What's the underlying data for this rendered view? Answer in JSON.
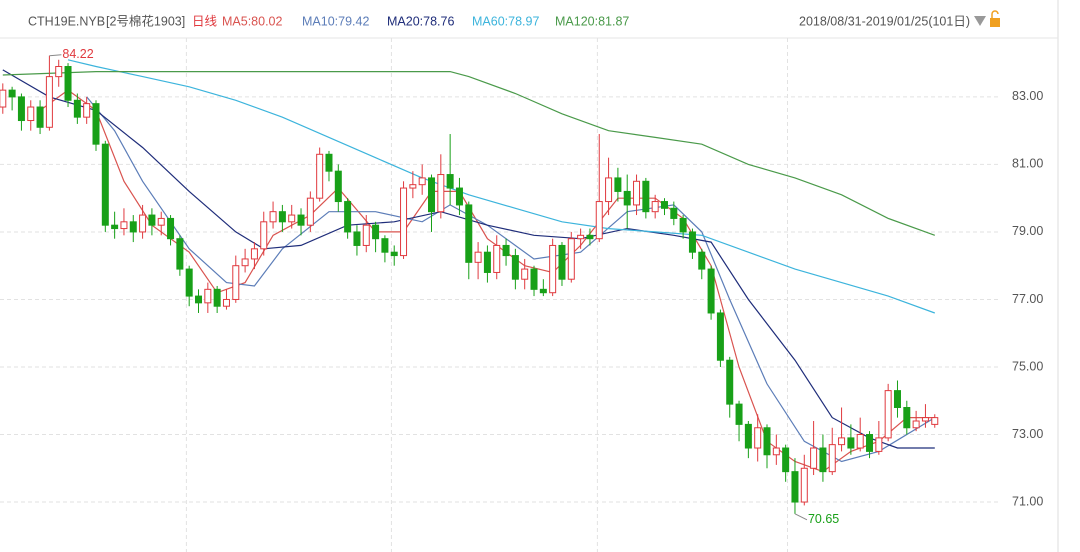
{
  "chart_data": {
    "type": "candlestick",
    "symbol": "CTH19E.NYB",
    "contract": "[2号棉花1903]",
    "period": "日线",
    "date_range": "2018/08/31-2019/01/25(101日)",
    "up_color": "#e0393e",
    "down_color": "#18a018",
    "grid": true,
    "ylim": [
      69.52,
      85.87
    ],
    "yticks": [
      {
        "value": 83,
        "label": "83.00"
      },
      {
        "value": 81,
        "label": "81.00"
      },
      {
        "value": 79,
        "label": "79.00"
      },
      {
        "value": 77,
        "label": "77.00"
      },
      {
        "value": 75,
        "label": "75.00"
      },
      {
        "value": 73,
        "label": "73.00"
      },
      {
        "value": 71,
        "label": "71.00"
      }
    ],
    "xlim": [
      -0.3,
      107
    ],
    "xgrid": [
      19.7,
      41.7,
      63.8,
      84.2
    ],
    "annotations": [
      "84.22",
      "70.65"
    ],
    "open": [
      82.7,
      83.2,
      83.0,
      82.3,
      82.7,
      82.1,
      83.6,
      83.9,
      82.9,
      82.4,
      82.8,
      81.6,
      79.2,
      79.1,
      79.3,
      79.0,
      79.5,
      79.2,
      79.4,
      78.8,
      77.9,
      77.1,
      76.9,
      77.3,
      76.8,
      77.0,
      78.0,
      78.2,
      78.5,
      79.3,
      79.6,
      79.3,
      79.5,
      79.2,
      80.0,
      81.3,
      80.8,
      79.9,
      79.0,
      78.6,
      79.2,
      78.8,
      78.4,
      78.3,
      80.3,
      80.4,
      80.6,
      79.6,
      80.7,
      80.3,
      79.8,
      78.1,
      78.4,
      77.8,
      78.6,
      78.3,
      77.6,
      77.9,
      77.3,
      77.2,
      78.6,
      77.6,
      78.8,
      78.9,
      78.8,
      79.9,
      80.6,
      80.2,
      79.8,
      80.5,
      79.6,
      79.9,
      79.7,
      79.4,
      79.0,
      78.4,
      77.9,
      76.6,
      75.2,
      73.9,
      73.3,
      72.6,
      73.2,
      72.4,
      72.6,
      71.9,
      71.0,
      72.0,
      72.6,
      71.9,
      72.7,
      72.9,
      72.6,
      73.0,
      72.5,
      72.9,
      74.3,
      73.8,
      73.2,
      73.4,
      73.3
    ],
    "high": [
      83.4,
      83.3,
      83.1,
      82.9,
      82.9,
      84.22,
      84.1,
      84.0,
      83.1,
      83.0,
      82.9,
      81.7,
      79.6,
      79.7,
      79.5,
      79.8,
      79.7,
      79.6,
      79.5,
      78.9,
      78.0,
      77.3,
      77.5,
      77.4,
      77.3,
      78.3,
      78.5,
      78.7,
      79.6,
      79.9,
      79.8,
      79.8,
      79.7,
      80.2,
      81.5,
      81.4,
      81.0,
      80.0,
      79.2,
      79.5,
      79.3,
      78.9,
      78.6,
      80.5,
      80.8,
      81.0,
      80.7,
      81.3,
      81.9,
      80.6,
      79.9,
      78.7,
      78.6,
      78.9,
      78.8,
      78.5,
      78.2,
      78.0,
      77.6,
      78.8,
      78.7,
      79.0,
      79.1,
      79.1,
      81.9,
      81.2,
      80.9,
      80.7,
      80.7,
      80.6,
      80.1,
      80.0,
      79.9,
      79.5,
      79.1,
      78.5,
      78.0,
      76.7,
      75.3,
      74.0,
      73.4,
      73.6,
      73.3,
      73.0,
      72.7,
      72.3,
      72.4,
      73.4,
      73.0,
      73.2,
      73.8,
      73.3,
      73.5,
      73.1,
      73.4,
      74.5,
      74.6,
      74.0,
      73.7,
      73.9,
      73.6
    ],
    "low": [
      82.5,
      82.6,
      82.0,
      82.0,
      81.9,
      82.0,
      83.3,
      82.7,
      82.2,
      82.2,
      81.4,
      79.0,
      78.8,
      78.9,
      78.7,
      78.8,
      78.9,
      78.9,
      78.6,
      77.7,
      76.8,
      76.6,
      76.6,
      76.6,
      76.7,
      76.9,
      77.8,
      77.9,
      78.3,
      79.1,
      79.0,
      79.1,
      78.9,
      79.0,
      79.9,
      80.5,
      79.6,
      78.8,
      78.3,
      78.4,
      78.4,
      78.1,
      78.0,
      78.2,
      80.0,
      80.1,
      79.0,
      79.4,
      79.8,
      79.5,
      77.6,
      77.6,
      77.5,
      77.6,
      78.0,
      77.3,
      77.3,
      77.1,
      77.1,
      77.1,
      77.4,
      77.5,
      78.5,
      78.6,
      78.7,
      79.5,
      79.9,
      79.1,
      79.5,
      79.4,
      79.4,
      79.5,
      79.2,
      78.8,
      78.2,
      77.6,
      76.4,
      75.0,
      73.5,
      72.8,
      72.3,
      72.2,
      72.0,
      72.1,
      71.6,
      70.65,
      70.9,
      71.8,
      71.6,
      71.8,
      72.5,
      72.4,
      72.5,
      72.3,
      72.4,
      72.8,
      73.5,
      73.0,
      73.1,
      73.2,
      73.2
    ],
    "close": [
      83.2,
      83.0,
      82.3,
      82.7,
      82.1,
      83.6,
      83.9,
      82.9,
      82.4,
      82.8,
      81.6,
      79.2,
      79.1,
      79.3,
      79.0,
      79.5,
      79.2,
      79.4,
      78.8,
      77.9,
      77.1,
      76.9,
      77.3,
      76.8,
      77.0,
      78.0,
      78.2,
      78.5,
      79.3,
      79.6,
      79.3,
      79.5,
      79.2,
      80.0,
      81.3,
      80.8,
      79.9,
      79.0,
      78.6,
      79.2,
      78.8,
      78.4,
      78.3,
      80.3,
      80.4,
      80.6,
      79.6,
      80.7,
      80.3,
      79.8,
      78.1,
      78.4,
      77.8,
      78.6,
      78.3,
      77.6,
      77.9,
      77.3,
      77.2,
      78.6,
      77.6,
      78.8,
      78.9,
      78.8,
      79.9,
      80.6,
      80.2,
      79.8,
      80.5,
      79.6,
      79.9,
      79.7,
      79.4,
      79.0,
      78.4,
      77.9,
      76.6,
      75.2,
      73.9,
      73.3,
      72.6,
      73.2,
      72.4,
      72.6,
      71.9,
      71.0,
      72.0,
      72.6,
      71.9,
      72.7,
      72.9,
      72.6,
      73.0,
      72.5,
      72.9,
      74.3,
      73.8,
      73.2,
      73.4,
      73.5,
      73.5
    ],
    "series": [
      {
        "name": "MA5:80.02",
        "color": "#d9534f",
        "x": [
          4,
          7,
          10,
          13,
          16,
          20,
          23,
          26,
          29,
          33,
          36,
          40,
          43,
          46,
          49,
          52,
          56,
          59,
          62,
          66,
          70,
          73,
          76,
          79,
          82,
          85,
          88,
          91,
          94,
          97,
          100
        ],
        "values": [
          82.6,
          83.2,
          82.6,
          80.5,
          79.2,
          78.4,
          77.2,
          77.5,
          78.9,
          79.5,
          80.3,
          79.0,
          79.0,
          80.2,
          80.2,
          78.8,
          78.0,
          77.8,
          78.6,
          80.0,
          80.0,
          79.4,
          78.0,
          75.0,
          72.8,
          72.2,
          71.9,
          72.5,
          72.8,
          73.5,
          73.5
        ]
      },
      {
        "name": "MA10:79.42",
        "color": "#5c7db8",
        "x": [
          9,
          12,
          15,
          20,
          24,
          27,
          30,
          35,
          40,
          45,
          48,
          52,
          57,
          62,
          67,
          72,
          75,
          78,
          82,
          86,
          90,
          94,
          100
        ],
        "values": [
          83.0,
          82.0,
          80.5,
          78.5,
          77.5,
          77.4,
          78.5,
          79.6,
          79.6,
          79.3,
          79.8,
          79.2,
          78.2,
          78.4,
          79.6,
          79.8,
          79.0,
          77.0,
          74.5,
          72.8,
          72.2,
          72.5,
          73.5
        ]
      },
      {
        "name": "MA20:78.76",
        "color": "#1f2d7a",
        "x": [
          0,
          5,
          10,
          15,
          20,
          25,
          28,
          32,
          37,
          42,
          47,
          52,
          57,
          62,
          67,
          72,
          76,
          80,
          85,
          89,
          93,
          96,
          100
        ],
        "values": [
          83.8,
          83.0,
          82.6,
          81.5,
          80.2,
          79.0,
          78.5,
          78.6,
          79.2,
          79.3,
          79.6,
          79.2,
          78.9,
          78.8,
          79.1,
          78.9,
          78.7,
          77.0,
          75.2,
          73.5,
          72.9,
          72.6,
          72.6
        ]
      },
      {
        "name": "MA60:78.97",
        "color": "#3cb4dc",
        "x": [
          7,
          10,
          15,
          20,
          25,
          30,
          35,
          40,
          45,
          50,
          55,
          60,
          65,
          70,
          75,
          80,
          85,
          90,
          95,
          100
        ],
        "values": [
          84.1,
          83.9,
          83.6,
          83.3,
          82.9,
          82.4,
          81.8,
          81.2,
          80.6,
          80.1,
          79.7,
          79.3,
          79.1,
          79.0,
          78.9,
          78.4,
          77.9,
          77.5,
          77.1,
          76.6
        ]
      },
      {
        "name": "MA120:81.87",
        "color": "#4a9a4a",
        "x": [
          0,
          10,
          20,
          30,
          40,
          48,
          50,
          55,
          60,
          65,
          70,
          75,
          80,
          85,
          90,
          95,
          100
        ],
        "values": [
          83.65,
          83.75,
          83.75,
          83.75,
          83.75,
          83.75,
          83.6,
          83.1,
          82.5,
          82.0,
          81.8,
          81.6,
          81.0,
          80.6,
          80.1,
          79.4,
          78.9
        ]
      }
    ]
  }
}
